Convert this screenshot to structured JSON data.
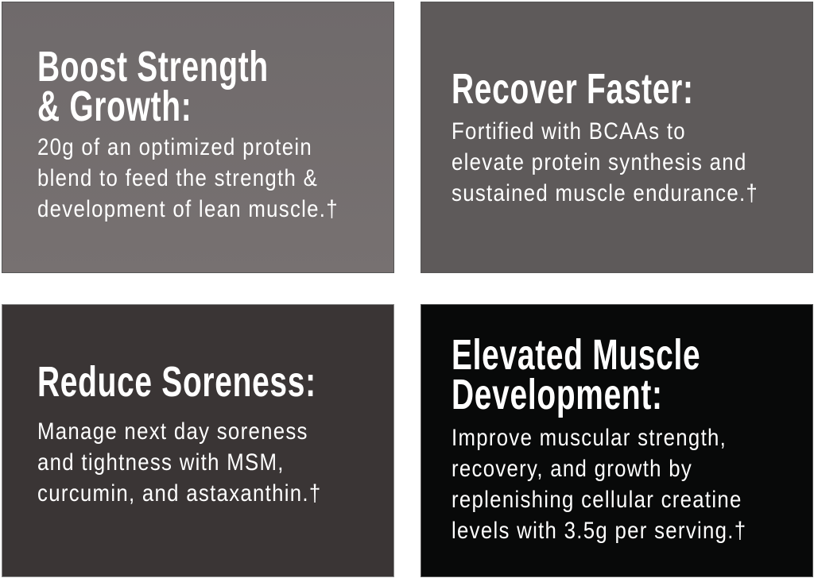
{
  "panels": [
    {
      "title": [
        "Boost Strength",
        "& Growth:"
      ],
      "body": [
        "20g of an optimized protein",
        "blend to feed the strength &",
        "development of lean muscle.†"
      ],
      "color": "#767070"
    },
    {
      "title": [
        "Recover Faster:"
      ],
      "body": [
        "Fortified with BCAAs to",
        "elevate protein synthesis and",
        "sustained muscle endurance.†"
      ],
      "color": "#5f5b5b"
    },
    {
      "title": [
        "Reduce Soreness:"
      ],
      "body": [
        "Manage next day soreness",
        "and tightness with MSM,",
        "curcumin, and astaxanthin.†"
      ],
      "color": "#3a3535"
    },
    {
      "title": [
        "Elevated Muscle",
        "Development:"
      ],
      "body": [
        "Improve muscular strength,",
        "recovery, and growth by",
        "replenishing cellular creatine",
        "levels with 3.5g per serving.†"
      ],
      "color": "#080909"
    }
  ]
}
